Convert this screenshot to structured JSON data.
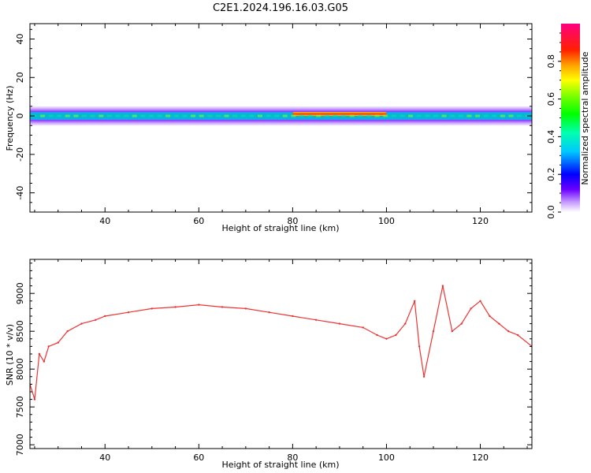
{
  "title": "C2E1.2024.196.16.03.G05",
  "chart_data": [
    {
      "type": "heatmap",
      "xlabel": "Height of straight line (km)",
      "ylabel": "Frequency (Hz)",
      "xlim": [
        24,
        131
      ],
      "ylim": [
        -50,
        48
      ],
      "xticks": [
        40,
        60,
        80,
        100,
        120
      ],
      "yticks": [
        -40,
        -20,
        0,
        20,
        40
      ],
      "colorbar": {
        "label": "Normalized spectral amplitude",
        "range": [
          0,
          1
        ],
        "ticks": [
          "0.0",
          "0.2",
          "0.4",
          "0.6",
          "0.8"
        ],
        "colormap": "gist_ncar-like (purple-blue-cyan-green-yellow-red-magenta)"
      },
      "bands": [
        {
          "x_range": [
            24,
            131
          ],
          "freq_hz": 0,
          "amplitude": 0.25,
          "halfwidth_hz": 5
        },
        {
          "x_range": [
            24,
            131
          ],
          "freq_hz": 0,
          "amplitude": 0.45,
          "halfwidth_hz": 2
        },
        {
          "x_range": [
            80,
            100
          ],
          "freq_hz": 1,
          "amplitude": 0.85,
          "halfwidth_hz": 1
        }
      ]
    },
    {
      "type": "line",
      "xlabel": "Height of straight line (km)",
      "ylabel": "SNR (10 * v/v)",
      "xlim": [
        24,
        131
      ],
      "ylim": [
        6950,
        9450
      ],
      "xticks": [
        40,
        60,
        80,
        100,
        120
      ],
      "yticks": [
        7000,
        7500,
        8000,
        8500,
        9000
      ],
      "color": "#ee3333",
      "series": [
        {
          "x": [
            24,
            25,
            26,
            27,
            28,
            30,
            32,
            35,
            38,
            40,
            45,
            50,
            55,
            60,
            65,
            70,
            75,
            80,
            85,
            90,
            95,
            98,
            100,
            102,
            104,
            106,
            107,
            108,
            110,
            112,
            114,
            116,
            118,
            120,
            122,
            124,
            126,
            128,
            131
          ],
          "values": [
            7800,
            7600,
            8200,
            8100,
            8300,
            8350,
            8500,
            8600,
            8650,
            8700,
            8750,
            8800,
            8820,
            8850,
            8820,
            8800,
            8750,
            8700,
            8650,
            8600,
            8550,
            8450,
            8400,
            8450,
            8600,
            8900,
            8300,
            7900,
            8500,
            9100,
            8500,
            8600,
            8800,
            8900,
            8700,
            8600,
            8500,
            8450,
            8300
          ]
        }
      ]
    }
  ]
}
